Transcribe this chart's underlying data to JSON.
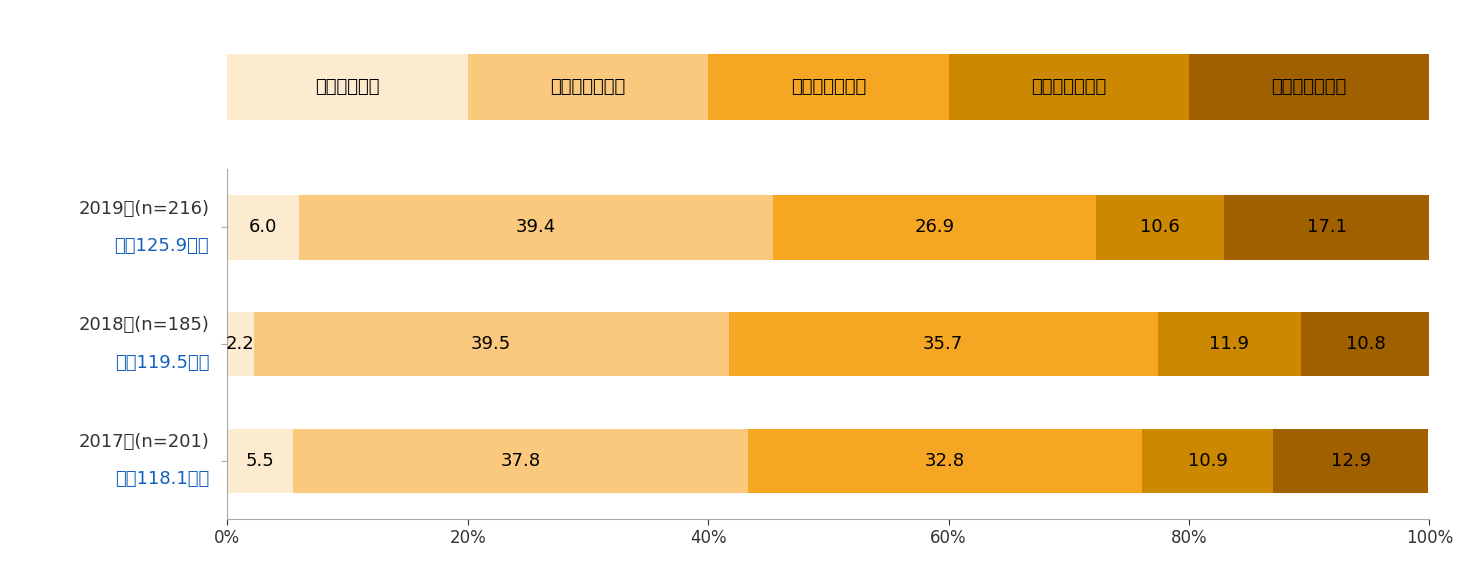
{
  "categories_line1": [
    "2019年(n=216)",
    "2018年(n=185)",
    "2017年(n=201)"
  ],
  "categories_line2": [
    "平均125.9万円",
    "平均119.5万円",
    "平均118.1万円"
  ],
  "legend_labels": [
    "５０万円未満",
    "１００万円未満",
    "１５０万円未満",
    "２００万円未満",
    "２００万円以上"
  ],
  "colors": [
    "#FDEBD0",
    "#FAC97E",
    "#F5A623",
    "#CC8800",
    "#A06000"
  ],
  "legend_widths": [
    20,
    20,
    20,
    20,
    20
  ],
  "data": [
    [
      6.0,
      39.4,
      26.9,
      10.6,
      17.1
    ],
    [
      2.2,
      39.5,
      35.7,
      11.9,
      10.8
    ],
    [
      5.5,
      37.8,
      32.8,
      10.9,
      12.9
    ]
  ],
  "xlim": [
    0,
    100
  ],
  "bar_height": 0.55,
  "background_color": "#ffffff",
  "label_color_year": "#333333",
  "label_color_avg": "#1460BD",
  "value_fontsize": 13,
  "legend_fontsize": 13,
  "tick_fontsize": 12,
  "label_fontsize": 13
}
